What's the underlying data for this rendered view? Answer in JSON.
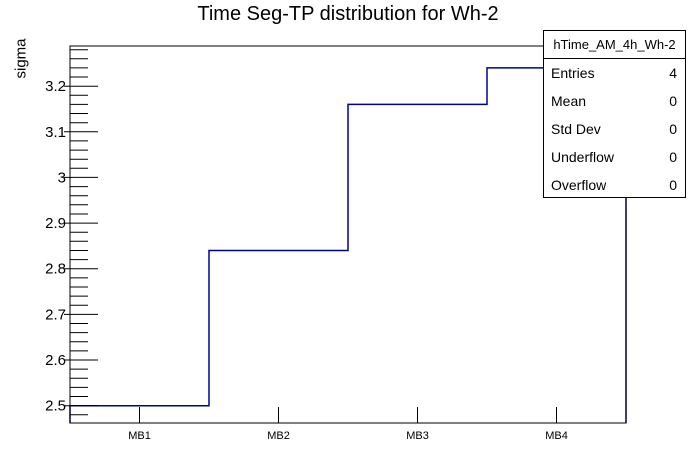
{
  "title": "Time Seg-TP distribution for Wh-2",
  "y_axis": {
    "label": "sigma"
  },
  "x_axis": {
    "labels": [
      "MB1",
      "MB2",
      "MB3",
      "MB4"
    ]
  },
  "stats_box": {
    "title": "hTime_AM_4h_Wh-2",
    "rows": [
      {
        "label": "Entries",
        "value": "4"
      },
      {
        "label": "Mean",
        "value": "0"
      },
      {
        "label": "Std Dev",
        "value": "0"
      },
      {
        "label": "Underflow",
        "value": "0"
      },
      {
        "label": "Overflow",
        "value": "0"
      }
    ]
  },
  "colors": {
    "hist_line": "#000099",
    "frame": "#000000",
    "background": "#ffffff",
    "text": "#000000"
  },
  "chart_data": {
    "type": "step-histogram",
    "title": "Time Seg-TP distribution for Wh-2",
    "xlabel": "",
    "ylabel": "sigma",
    "categories": [
      "MB1",
      "MB2",
      "MB3",
      "MB4"
    ],
    "values": [
      2.5,
      2.84,
      3.16,
      3.24
    ],
    "ylim": [
      2.462,
      3.288
    ],
    "y_major_ticks": [
      2.5,
      2.6,
      2.7,
      2.8,
      2.9,
      3,
      3.1,
      3.2
    ],
    "y_minor_step": 0.02,
    "grid": false,
    "legend": false,
    "stats": {
      "name": "hTime_AM_4h_Wh-2",
      "entries": 4,
      "mean": 0,
      "std_dev": 0,
      "underflow": 0,
      "overflow": 0
    }
  }
}
